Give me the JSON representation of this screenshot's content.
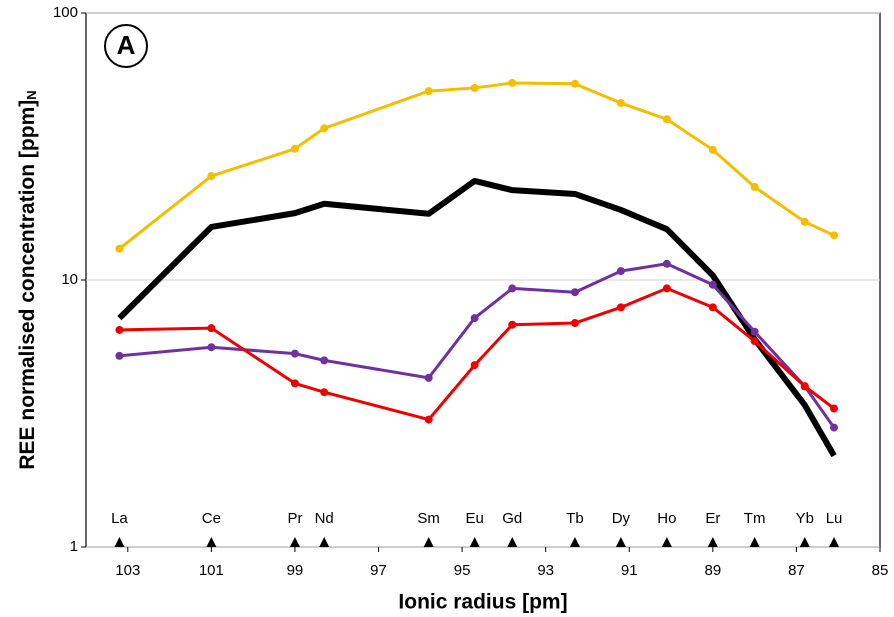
{
  "chart_data": {
    "type": "line",
    "annotation": "A",
    "x_label": "Ionic radius [pm]",
    "y_label": "REE normalised concentration [ppm]",
    "y_label_subscript": "N",
    "x": [
      103.2,
      101,
      99,
      98.3,
      95.8,
      94.7,
      93.8,
      92.3,
      91.2,
      90.1,
      89,
      88,
      86.8,
      86.1
    ],
    "element_labels": [
      "La",
      "Ce",
      "Pr",
      "Nd",
      "Sm",
      "Eu",
      "Gd",
      "Tb",
      "Dy",
      "Ho",
      "Er",
      "Tm",
      "Yb",
      "Lu"
    ],
    "xlim": [
      104,
      85
    ],
    "xticks": [
      103,
      101,
      99,
      97,
      95,
      93,
      91,
      89,
      87,
      85
    ],
    "ylim": [
      1,
      100
    ],
    "yticks": [
      1,
      10,
      100
    ],
    "log_y": true,
    "grid": true,
    "series": [
      {
        "color": "#f5bd00",
        "markers": true,
        "values": [
          13.1,
          24.5,
          31,
          37,
          51,
          52.4,
          54.7,
          54.3,
          46,
          40,
          30.7,
          22.3,
          16.5,
          14.7
        ]
      },
      {
        "color": "#000000",
        "markers": false,
        "values": [
          7.2,
          15.8,
          17.8,
          19.3,
          17.7,
          23.5,
          21.7,
          21,
          18.3,
          15.5,
          10.4,
          6.0,
          3.4,
          2.2
        ]
      },
      {
        "color": "#7030a0",
        "markers": true,
        "values": [
          5.2,
          5.6,
          5.3,
          5.0,
          4.3,
          7.2,
          9.3,
          9.0,
          10.8,
          11.5,
          9.6,
          6.4,
          4.0,
          2.8
        ]
      },
      {
        "color": "#ee0000",
        "markers": true,
        "values": [
          6.5,
          6.6,
          4.1,
          3.8,
          3.0,
          4.8,
          6.8,
          6.9,
          7.9,
          9.3,
          7.9,
          5.9,
          4.0,
          3.3
        ]
      }
    ]
  }
}
